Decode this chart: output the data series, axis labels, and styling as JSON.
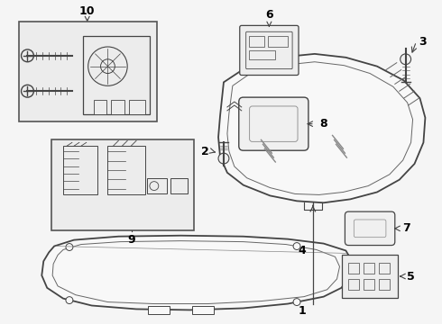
{
  "background_color": "#f5f5f5",
  "line_color": "#444444",
  "box_bg": "#ececec",
  "fig_width": 4.9,
  "fig_height": 3.6,
  "dpi": 100
}
